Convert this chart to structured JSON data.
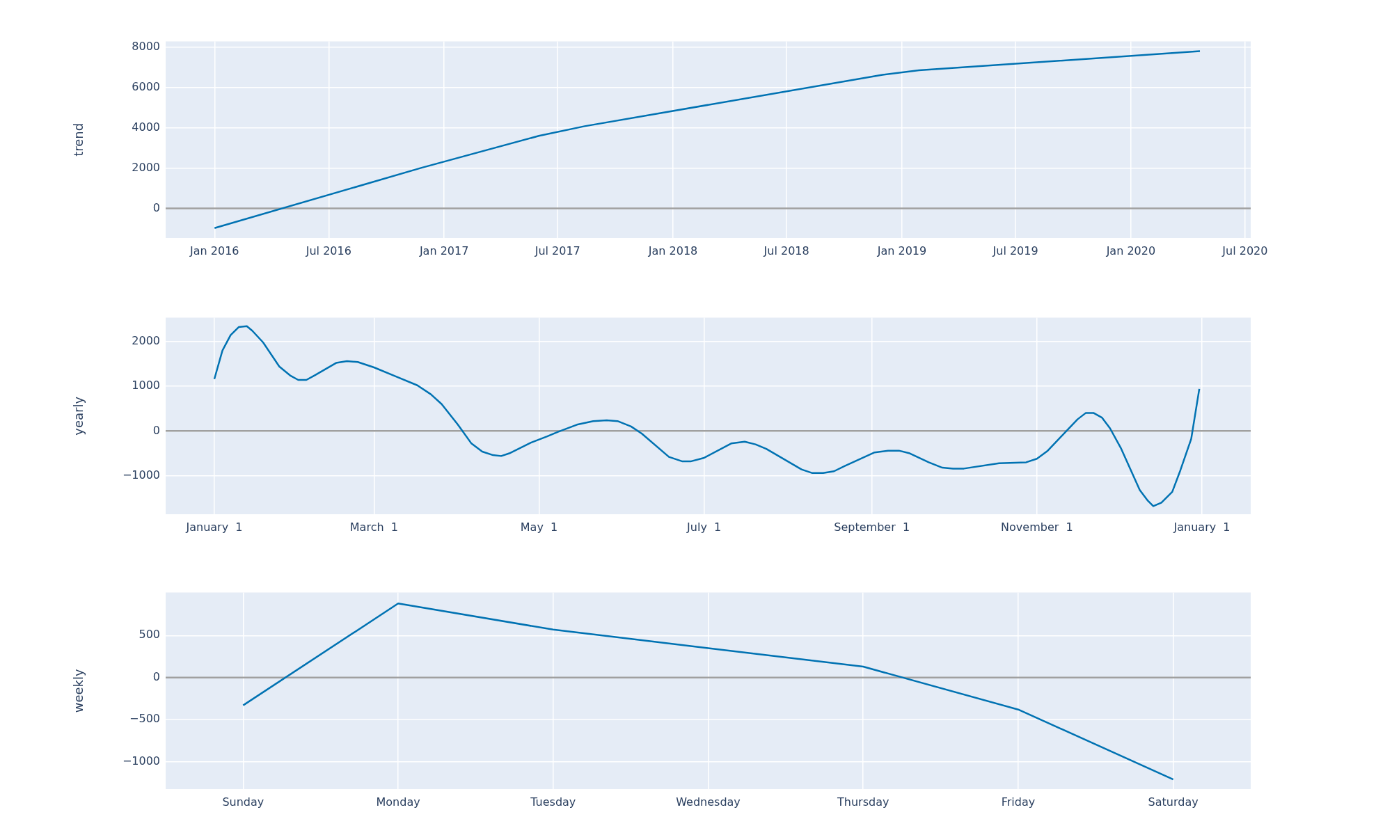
{
  "chart_data": [
    {
      "type": "line",
      "ylabel": "trend",
      "x": [
        "2016-01-01",
        "2016-11-25",
        "2017-06-01",
        "2017-08-13",
        "2018-12-01",
        "2019-01-28",
        "2020-04-20"
      ],
      "series": [
        {
          "color": "#0072b2",
          "values": [
            -980,
            2000,
            3590,
            4070,
            6620,
            6840,
            7790
          ]
        }
      ],
      "xlim": [
        "2015-10-15",
        "2020-07-10"
      ],
      "xticks": [
        {
          "value": "2016-01-01",
          "label": "Jan 2016"
        },
        {
          "value": "2016-07-01",
          "label": "Jul 2016"
        },
        {
          "value": "2017-01-01",
          "label": "Jan 2017"
        },
        {
          "value": "2017-07-01",
          "label": "Jul 2017"
        },
        {
          "value": "2018-01-01",
          "label": "Jan 2018"
        },
        {
          "value": "2018-07-01",
          "label": "Jul 2018"
        },
        {
          "value": "2019-01-01",
          "label": "Jan 2019"
        },
        {
          "value": "2019-07-01",
          "label": "Jul 2019"
        },
        {
          "value": "2020-01-01",
          "label": "Jan 2020"
        },
        {
          "value": "2020-07-01",
          "label": "Jul 2020"
        }
      ],
      "ylim": [
        -1470,
        8270
      ],
      "yticks": [
        0,
        2000,
        4000,
        6000,
        8000
      ],
      "grid": true,
      "ref_lines": [
        {
          "axis": "y",
          "value": 0,
          "color": "#a0a0a0"
        }
      ]
    },
    {
      "type": "line",
      "ylabel": "yearly",
      "x": [
        "2017-01-01",
        "2017-01-04",
        "2017-01-07",
        "2017-01-10",
        "2017-01-13",
        "2017-01-15",
        "2017-01-19",
        "2017-01-25",
        "2017-01-29",
        "2017-02-01",
        "2017-02-04",
        "2017-02-07",
        "2017-02-15",
        "2017-02-19",
        "2017-02-23",
        "2017-03-01",
        "2017-03-09",
        "2017-03-17",
        "2017-03-22",
        "2017-03-26",
        "2017-04-01",
        "2017-04-06",
        "2017-04-10",
        "2017-04-14",
        "2017-04-17",
        "2017-04-20",
        "2017-04-28",
        "2017-05-04",
        "2017-05-08",
        "2017-05-15",
        "2017-05-21",
        "2017-05-26",
        "2017-05-30",
        "2017-06-04",
        "2017-06-08",
        "2017-06-18",
        "2017-06-23",
        "2017-06-26",
        "2017-07-01",
        "2017-07-11",
        "2017-07-16",
        "2017-07-20",
        "2017-07-24",
        "2017-08-06",
        "2017-08-10",
        "2017-08-14",
        "2017-08-18",
        "2017-08-22",
        "2017-09-02",
        "2017-09-07",
        "2017-09-11",
        "2017-09-15",
        "2017-09-22",
        "2017-09-27",
        "2017-10-01",
        "2017-10-05",
        "2017-10-18",
        "2017-10-28",
        "2017-11-01",
        "2017-11-05",
        "2017-11-10",
        "2017-11-16",
        "2017-11-19",
        "2017-11-22",
        "2017-11-25",
        "2017-11-28",
        "2017-12-02",
        "2017-12-09",
        "2017-12-12",
        "2017-12-14",
        "2017-12-17",
        "2017-12-21",
        "2017-12-24",
        "2017-12-28",
        "2017-12-31"
      ],
      "series": [
        {
          "color": "#0072b2",
          "values": [
            1160,
            1800,
            2140,
            2320,
            2340,
            2240,
            1980,
            1440,
            1240,
            1140,
            1140,
            1240,
            1520,
            1560,
            1540,
            1420,
            1220,
            1020,
            820,
            600,
            140,
            -280,
            -460,
            -540,
            -560,
            -500,
            -260,
            -120,
            -20,
            140,
            220,
            240,
            220,
            100,
            -60,
            -580,
            -680,
            -680,
            -600,
            -280,
            -240,
            -300,
            -400,
            -860,
            -940,
            -940,
            -900,
            -780,
            -480,
            -440,
            -440,
            -500,
            -700,
            -820,
            -840,
            -840,
            -720,
            -700,
            -620,
            -440,
            -120,
            260,
            400,
            400,
            300,
            60,
            -380,
            -1320,
            -1560,
            -1680,
            -1600,
            -1360,
            -880,
            -180,
            940
          ]
        }
      ],
      "xlim": [
        "2016-12-14",
        "2018-01-19"
      ],
      "xticks": [
        {
          "value": "2017-01-01",
          "label": "January  1"
        },
        {
          "value": "2017-03-01",
          "label": "March  1"
        },
        {
          "value": "2017-05-01",
          "label": "May  1"
        },
        {
          "value": "2017-07-01",
          "label": "July  1"
        },
        {
          "value": "2017-09-01",
          "label": "September  1"
        },
        {
          "value": "2017-11-01",
          "label": "November  1"
        },
        {
          "value": "2018-01-01",
          "label": "January  1"
        }
      ],
      "ylim": [
        -1860,
        2530
      ],
      "yticks": [
        -1000,
        0,
        1000,
        2000
      ],
      "grid": true,
      "ref_lines": [
        {
          "axis": "y",
          "value": 0,
          "color": "#a0a0a0"
        }
      ]
    },
    {
      "type": "line",
      "ylabel": "weekly",
      "categories": [
        "Sunday",
        "Monday",
        "Tuesday",
        "Wednesday",
        "Thursday",
        "Friday",
        "Saturday"
      ],
      "series": [
        {
          "color": "#0072b2",
          "values": [
            -330,
            880,
            570,
            350,
            130,
            -380,
            -1210
          ]
        }
      ],
      "ylim": [
        -1325,
        1010
      ],
      "yticks": [
        -1000,
        -500,
        0,
        500
      ],
      "grid": true,
      "ref_lines": [
        {
          "axis": "y",
          "value": 0,
          "color": "#a0a0a0"
        }
      ]
    }
  ]
}
